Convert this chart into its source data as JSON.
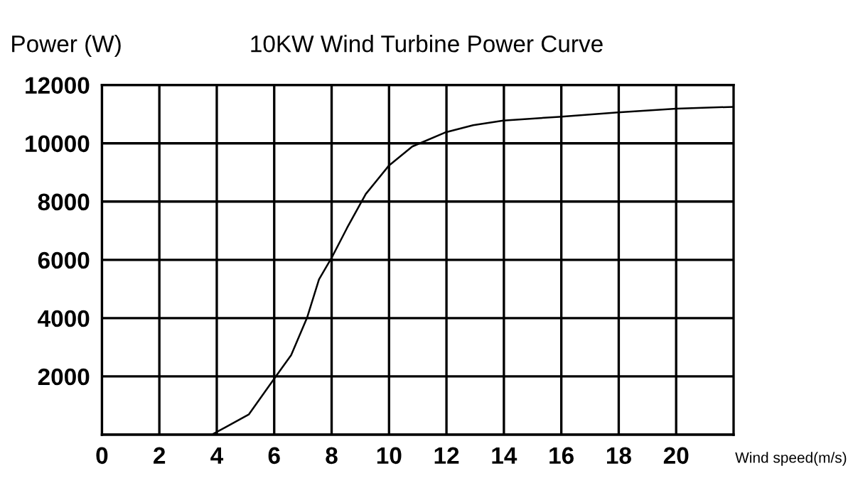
{
  "chart_data": {
    "type": "line",
    "title": "10KW Wind Turbine Power Curve",
    "xlabel": "Wind speed(m/s)",
    "ylabel": "Power (W)",
    "x": [
      3.82,
      4.31,
      5.12,
      6.02,
      6.59,
      7.15,
      7.56,
      8.0,
      8.54,
      9.19,
      10.0,
      10.81,
      11.95,
      12.93,
      13.98,
      15.93,
      17.97,
      20.0,
      21.98
    ],
    "series": [
      {
        "color": "#000000",
        "values": [
          0,
          260,
          700,
          1950,
          2730,
          4030,
          5330,
          6070,
          7100,
          8260,
          9240,
          9890,
          10370,
          10620,
          10780,
          10910,
          11060,
          11190,
          11250
        ]
      }
    ],
    "xlim": [
      0,
      22
    ],
    "xticks": [
      0,
      2,
      4,
      6,
      8,
      10,
      12,
      14,
      16,
      18,
      20
    ],
    "ylim": [
      0,
      12000
    ],
    "yticks": [
      {
        "value": 0,
        "label": null
      },
      2000,
      4000,
      6000,
      8000,
      10000,
      12000
    ],
    "grid": true,
    "marker": "none",
    "line_style": "solid"
  }
}
